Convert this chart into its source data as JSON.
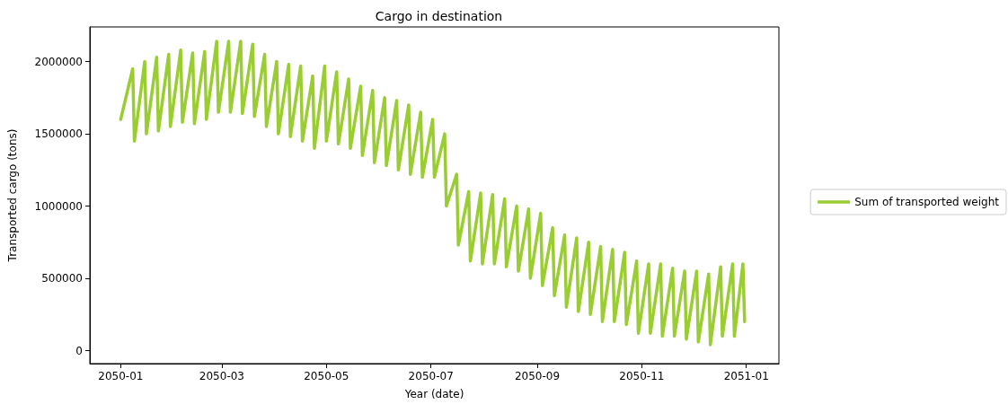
{
  "chart_data": {
    "type": "line",
    "title": "Cargo in destination",
    "xlabel": "Year (date)",
    "ylabel": "Transported cargo (tons)",
    "x": [
      "2050-01-01",
      "2050-01-08",
      "2050-01-09",
      "2050-01-15",
      "2050-01-16",
      "2050-01-22",
      "2050-01-23",
      "2050-01-29",
      "2050-01-30",
      "2050-02-05",
      "2050-02-06",
      "2050-02-12",
      "2050-02-13",
      "2050-02-19",
      "2050-02-20",
      "2050-02-26",
      "2050-02-27",
      "2050-03-05",
      "2050-03-06",
      "2050-03-12",
      "2050-03-13",
      "2050-03-19",
      "2050-03-20",
      "2050-03-26",
      "2050-03-27",
      "2050-04-02",
      "2050-04-03",
      "2050-04-09",
      "2050-04-10",
      "2050-04-16",
      "2050-04-17",
      "2050-04-23",
      "2050-04-24",
      "2050-04-30",
      "2050-05-01",
      "2050-05-07",
      "2050-05-08",
      "2050-05-14",
      "2050-05-15",
      "2050-05-21",
      "2050-05-22",
      "2050-05-28",
      "2050-05-29",
      "2050-06-04",
      "2050-06-05",
      "2050-06-11",
      "2050-06-12",
      "2050-06-18",
      "2050-06-19",
      "2050-06-25",
      "2050-06-26",
      "2050-07-02",
      "2050-07-03",
      "2050-07-09",
      "2050-07-10",
      "2050-07-16",
      "2050-07-17",
      "2050-07-23",
      "2050-07-24",
      "2050-07-30",
      "2050-07-31",
      "2050-08-06",
      "2050-08-07",
      "2050-08-13",
      "2050-08-14",
      "2050-08-20",
      "2050-08-21",
      "2050-08-27",
      "2050-08-28",
      "2050-09-03",
      "2050-09-04",
      "2050-09-10",
      "2050-09-11",
      "2050-09-17",
      "2050-09-18",
      "2050-09-24",
      "2050-09-25",
      "2050-10-01",
      "2050-10-02",
      "2050-10-08",
      "2050-10-09",
      "2050-10-15",
      "2050-10-16",
      "2050-10-22",
      "2050-10-23",
      "2050-10-29",
      "2050-10-30",
      "2050-11-05",
      "2050-11-06",
      "2050-11-12",
      "2050-11-13",
      "2050-11-19",
      "2050-11-20",
      "2050-11-26",
      "2050-11-27",
      "2050-12-03",
      "2050-12-04",
      "2050-12-10",
      "2050-12-11",
      "2050-12-17",
      "2050-12-18",
      "2050-12-24",
      "2050-12-25",
      "2050-12-30",
      "2050-12-31"
    ],
    "series": [
      {
        "name": "Sum of transported weight",
        "color": "#9acd32",
        "values": [
          1600000,
          1950000,
          1450000,
          2000000,
          1500000,
          2030000,
          1520000,
          2050000,
          1550000,
          2080000,
          1580000,
          2060000,
          1570000,
          2070000,
          1600000,
          2140000,
          1650000,
          2140000,
          1650000,
          2140000,
          1640000,
          2120000,
          1620000,
          2050000,
          1550000,
          2000000,
          1500000,
          1980000,
          1480000,
          1970000,
          1450000,
          1900000,
          1400000,
          1970000,
          1450000,
          1930000,
          1430000,
          1880000,
          1400000,
          1830000,
          1350000,
          1800000,
          1300000,
          1750000,
          1280000,
          1730000,
          1250000,
          1700000,
          1220000,
          1650000,
          1200000,
          1600000,
          1200000,
          1500000,
          1000000,
          1220000,
          730000,
          1100000,
          620000,
          1090000,
          600000,
          1080000,
          600000,
          1050000,
          580000,
          1000000,
          550000,
          980000,
          500000,
          950000,
          450000,
          850000,
          380000,
          800000,
          300000,
          780000,
          270000,
          750000,
          250000,
          720000,
          200000,
          700000,
          200000,
          680000,
          180000,
          620000,
          120000,
          600000,
          120000,
          600000,
          100000,
          570000,
          100000,
          550000,
          80000,
          550000,
          60000,
          530000,
          40000,
          580000,
          100000,
          600000,
          100000,
          600000,
          200000
        ]
      }
    ],
    "xlim": [
      "2049-12-14",
      "2051-01-20"
    ],
    "xticks": [
      "2050-01",
      "2050-03",
      "2050-05",
      "2050-07",
      "2050-09",
      "2050-11",
      "2051-01"
    ],
    "ylim": [
      -90000,
      2240000
    ],
    "yticks": [
      0,
      500000,
      1000000,
      1500000,
      2000000
    ],
    "grid": false,
    "legend": "right",
    "marker": "none",
    "line_style": "solid"
  }
}
